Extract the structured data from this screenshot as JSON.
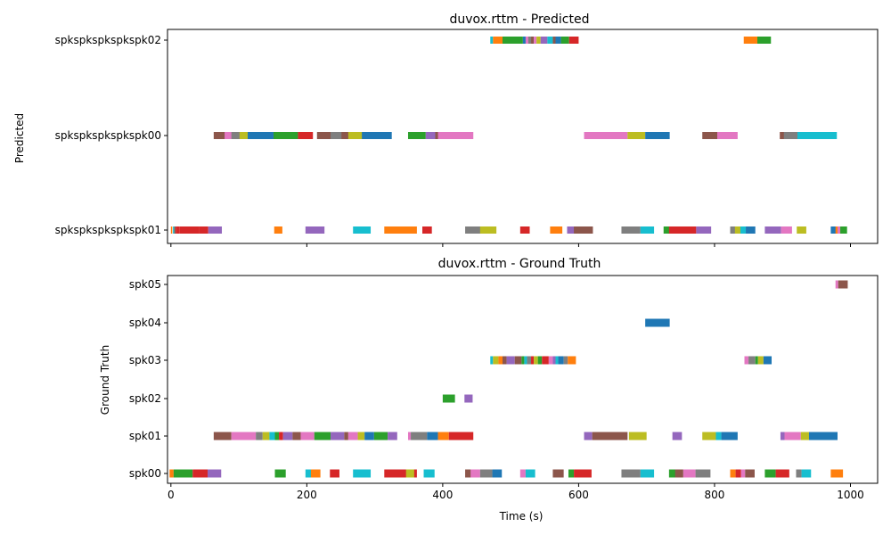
{
  "palette": [
    "#1f77b4",
    "#ff7f0e",
    "#2ca02c",
    "#d62728",
    "#9467bd",
    "#8c564b",
    "#e377c2",
    "#7f7f7f",
    "#bcbd22",
    "#17becf"
  ],
  "chart_data": [
    {
      "type": "broken_barh",
      "title": "duvox.rttm - Predicted",
      "ylabel": "Predicted",
      "xlabel": "",
      "xlim": [
        -5,
        1040
      ],
      "xticks": [
        0,
        200,
        400,
        600,
        800,
        1000
      ],
      "show_xtick_labels": false,
      "rows": [
        {
          "label": "spkspkspkspkspk01",
          "segments": [
            [
              0,
              2,
              1
            ],
            [
              3,
              2,
              9
            ],
            [
              5,
              2,
              5
            ],
            [
              7,
              6,
              3
            ],
            [
              13,
              28,
              3
            ],
            [
              41,
              14,
              3
            ],
            [
              55,
              20,
              4
            ],
            [
              152,
              12,
              1
            ],
            [
              198,
              28,
              4
            ],
            [
              268,
              26,
              9
            ],
            [
              314,
              48,
              1
            ],
            [
              370,
              14,
              3
            ],
            [
              433,
              28,
              7
            ],
            [
              455,
              24,
              8
            ],
            [
              514,
              14,
              3
            ],
            [
              558,
              18,
              1
            ],
            [
              583,
              12,
              4
            ],
            [
              593,
              28,
              5
            ],
            [
              663,
              28,
              7
            ],
            [
              691,
              20,
              9
            ],
            [
              725,
              10,
              2
            ],
            [
              733,
              40,
              3
            ],
            [
              773,
              22,
              4
            ],
            [
              823,
              8,
              7
            ],
            [
              830,
              10,
              8
            ],
            [
              838,
              8,
              9
            ],
            [
              846,
              14,
              0
            ],
            [
              874,
              24,
              4
            ],
            [
              898,
              16,
              6
            ],
            [
              921,
              14,
              8
            ],
            [
              971,
              8,
              0
            ],
            [
              978,
              4,
              1
            ],
            [
              981,
              4,
              6
            ],
            [
              985,
              10,
              2
            ]
          ]
        },
        {
          "label": "spkspkspkspkspk00",
          "segments": [
            [
              63,
              18,
              5
            ],
            [
              79,
              14,
              6
            ],
            [
              89,
              14,
              7
            ],
            [
              101,
              14,
              8
            ],
            [
              113,
              38,
              0
            ],
            [
              151,
              36,
              2
            ],
            [
              187,
              22,
              3
            ],
            [
              215,
              22,
              5
            ],
            [
              235,
              18,
              7
            ],
            [
              251,
              12,
              5
            ],
            [
              261,
              22,
              8
            ],
            [
              281,
              44,
              0
            ],
            [
              349,
              26,
              2
            ],
            [
              375,
              16,
              4
            ],
            [
              389,
              8,
              5
            ],
            [
              393,
              52,
              6
            ],
            [
              608,
              64,
              6
            ],
            [
              672,
              26,
              8
            ],
            [
              698,
              36,
              0
            ],
            [
              782,
              22,
              5
            ],
            [
              804,
              30,
              6
            ],
            [
              896,
              8,
              5
            ],
            [
              902,
              20,
              7
            ],
            [
              922,
              58,
              9
            ]
          ]
        },
        {
          "label": "spkspkspkspkspk02",
          "segments": [
            [
              470,
              4,
              9
            ],
            [
              474,
              14,
              1
            ],
            [
              488,
              30,
              2
            ],
            [
              518,
              4,
              0
            ],
            [
              522,
              4,
              6
            ],
            [
              526,
              4,
              7
            ],
            [
              530,
              4,
              5
            ],
            [
              534,
              4,
              6
            ],
            [
              538,
              6,
              8
            ],
            [
              544,
              10,
              4
            ],
            [
              554,
              8,
              9
            ],
            [
              562,
              4,
              5
            ],
            [
              566,
              8,
              0
            ],
            [
              574,
              12,
              2
            ],
            [
              586,
              14,
              3
            ],
            [
              843,
              20,
              1
            ],
            [
              863,
              20,
              2
            ]
          ]
        }
      ]
    },
    {
      "type": "broken_barh",
      "title": "duvox.rttm - Ground Truth",
      "ylabel": "Ground Truth",
      "xlabel": "Time (s)",
      "xlim": [
        -5,
        1040
      ],
      "xticks": [
        0,
        200,
        400,
        600,
        800,
        1000
      ],
      "show_xtick_labels": true,
      "rows": [
        {
          "label": "spk00",
          "segments": [
            [
              -2,
              6,
              1
            ],
            [
              4,
              28,
              2
            ],
            [
              32,
              22,
              3
            ],
            [
              54,
              20,
              4
            ],
            [
              153,
              16,
              2
            ],
            [
              198,
              10,
              9
            ],
            [
              206,
              14,
              1
            ],
            [
              234,
              14,
              3
            ],
            [
              268,
              26,
              9
            ],
            [
              314,
              48,
              3
            ],
            [
              346,
              12,
              8
            ],
            [
              372,
              16,
              9
            ],
            [
              433,
              10,
              5
            ],
            [
              441,
              14,
              6
            ],
            [
              455,
              18,
              7
            ],
            [
              473,
              14,
              0
            ],
            [
              514,
              8,
              6
            ],
            [
              522,
              14,
              9
            ],
            [
              562,
              16,
              5
            ],
            [
              585,
              8,
              2
            ],
            [
              593,
              26,
              3
            ],
            [
              663,
              28,
              7
            ],
            [
              691,
              20,
              9
            ],
            [
              733,
              10,
              2
            ],
            [
              742,
              12,
              5
            ],
            [
              754,
              18,
              6
            ],
            [
              772,
              22,
              7
            ],
            [
              823,
              8,
              1
            ],
            [
              831,
              8,
              3
            ],
            [
              839,
              6,
              6
            ],
            [
              845,
              14,
              5
            ],
            [
              874,
              16,
              2
            ],
            [
              890,
              20,
              3
            ],
            [
              920,
              8,
              7
            ],
            [
              928,
              14,
              9
            ],
            [
              971,
              18,
              1
            ]
          ]
        },
        {
          "label": "spk01",
          "segments": [
            [
              63,
              26,
              5
            ],
            [
              89,
              36,
              6
            ],
            [
              125,
              10,
              7
            ],
            [
              135,
              10,
              8
            ],
            [
              145,
              8,
              9
            ],
            [
              153,
              6,
              2
            ],
            [
              159,
              6,
              3
            ],
            [
              165,
              14,
              4
            ],
            [
              179,
              12,
              5
            ],
            [
              191,
              20,
              6
            ],
            [
              211,
              24,
              2
            ],
            [
              235,
              20,
              4
            ],
            [
              255,
              6,
              5
            ],
            [
              261,
              14,
              6
            ],
            [
              275,
              10,
              8
            ],
            [
              285,
              14,
              0
            ],
            [
              299,
              20,
              2
            ],
            [
              319,
              14,
              4
            ],
            [
              349,
              4,
              6
            ],
            [
              353,
              24,
              7
            ],
            [
              377,
              16,
              0
            ],
            [
              393,
              16,
              1
            ],
            [
              409,
              36,
              3
            ],
            [
              608,
              12,
              4
            ],
            [
              620,
              52,
              5
            ],
            [
              674,
              26,
              8
            ],
            [
              738,
              14,
              4
            ],
            [
              782,
              20,
              8
            ],
            [
              802,
              8,
              9
            ],
            [
              810,
              24,
              0
            ],
            [
              897,
              6,
              4
            ],
            [
              903,
              24,
              6
            ],
            [
              927,
              12,
              8
            ],
            [
              939,
              42,
              0
            ]
          ]
        },
        {
          "label": "spk02",
          "segments": [
            [
              400,
              18,
              2
            ],
            [
              432,
              12,
              4
            ]
          ]
        },
        {
          "label": "spk03",
          "segments": [
            [
              470,
              4,
              9
            ],
            [
              474,
              8,
              8
            ],
            [
              482,
              6,
              1
            ],
            [
              488,
              6,
              5
            ],
            [
              494,
              12,
              4
            ],
            [
              506,
              10,
              5
            ],
            [
              516,
              4,
              2
            ],
            [
              520,
              4,
              9
            ],
            [
              524,
              6,
              7
            ],
            [
              530,
              4,
              3
            ],
            [
              534,
              6,
              8
            ],
            [
              540,
              6,
              2
            ],
            [
              546,
              10,
              3
            ],
            [
              556,
              6,
              6
            ],
            [
              562,
              4,
              4
            ],
            [
              566,
              4,
              9
            ],
            [
              570,
              8,
              0
            ],
            [
              578,
              6,
              7
            ],
            [
              584,
              12,
              1
            ],
            [
              844,
              6,
              6
            ],
            [
              850,
              10,
              7
            ],
            [
              860,
              4,
              2
            ],
            [
              864,
              8,
              8
            ],
            [
              872,
              12,
              0
            ]
          ]
        },
        {
          "label": "spk04",
          "segments": [
            [
              698,
              36,
              0
            ]
          ]
        },
        {
          "label": "spk05",
          "segments": [
            [
              978,
              4,
              6
            ],
            [
              982,
              14,
              5
            ]
          ]
        }
      ]
    }
  ]
}
